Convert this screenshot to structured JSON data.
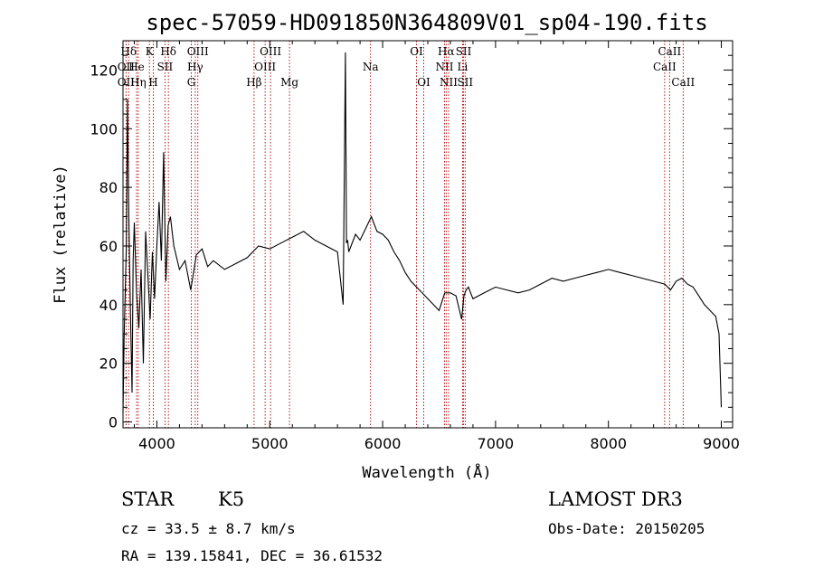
{
  "chart_data": {
    "type": "line",
    "title": "spec-57059-HD091850N364809V01_sp04-190.fits",
    "xlabel": "Wavelength (Å)",
    "ylabel": "Flux (relative)",
    "xlim": [
      3700,
      9100
    ],
    "ylim": [
      -2,
      130
    ],
    "xticks": [
      4000,
      5000,
      6000,
      7000,
      8000,
      9000
    ],
    "yticks": [
      0,
      20,
      40,
      60,
      80,
      100,
      120
    ],
    "xtick_labels": [
      "4000",
      "5000",
      "6000",
      "7000",
      "8000",
      "9000"
    ],
    "ytick_labels": [
      "0",
      "20",
      "40",
      "60",
      "80",
      "100",
      "120"
    ],
    "series": [
      {
        "name": "spectrum",
        "x": [
          3700,
          3710,
          3720,
          3730,
          3740,
          3750,
          3760,
          3770,
          3780,
          3790,
          3800,
          3820,
          3840,
          3860,
          3880,
          3900,
          3920,
          3940,
          3960,
          3980,
          4000,
          4020,
          4040,
          4060,
          4080,
          4100,
          4120,
          4150,
          4200,
          4250,
          4300,
          4350,
          4400,
          4450,
          4500,
          4600,
          4700,
          4800,
          4900,
          5000,
          5100,
          5200,
          5300,
          5400,
          5500,
          5600,
          5650,
          5670,
          5680,
          5690,
          5700,
          5720,
          5760,
          5800,
          5850,
          5900,
          5950,
          6000,
          6050,
          6100,
          6150,
          6200,
          6250,
          6300,
          6350,
          6400,
          6450,
          6500,
          6550,
          6600,
          6650,
          6700,
          6720,
          6740,
          6760,
          6800,
          6900,
          7000,
          7100,
          7200,
          7300,
          7400,
          7500,
          7600,
          7700,
          7800,
          7900,
          8000,
          8100,
          8200,
          8300,
          8400,
          8500,
          8550,
          8600,
          8650,
          8700,
          8750,
          8800,
          8850,
          8900,
          8950,
          8980,
          9000
        ],
        "y": [
          3,
          28,
          45,
          60,
          110,
          75,
          50,
          30,
          10,
          55,
          68,
          44,
          32,
          52,
          20,
          65,
          50,
          35,
          58,
          42,
          60,
          75,
          55,
          92,
          48,
          67,
          70,
          60,
          52,
          55,
          45,
          57,
          59,
          53,
          55,
          52,
          54,
          56,
          60,
          59,
          61,
          63,
          65,
          62,
          60,
          58,
          40,
          126,
          61,
          62,
          58,
          60,
          64,
          62,
          66,
          70,
          65,
          64,
          62,
          58,
          55,
          51,
          48,
          46,
          44,
          42,
          40,
          38,
          44,
          44,
          43,
          35,
          43,
          45,
          46,
          42,
          44,
          46,
          45,
          44,
          45,
          47,
          49,
          48,
          49,
          50,
          51,
          52,
          51,
          50,
          49,
          48,
          47,
          45,
          48,
          49,
          47,
          46,
          43,
          40,
          38,
          36,
          30,
          5
        ]
      }
    ],
    "line_markers": [
      {
        "label": "Hδ",
        "wl": 3750,
        "row": 0
      },
      {
        "label": "K",
        "wl": 3934,
        "row": 0
      },
      {
        "label": "Hδ",
        "wl": 4102,
        "row": 0
      },
      {
        "label": "OIII",
        "wl": 4363,
        "row": 0
      },
      {
        "label": "OIII",
        "wl": 5007,
        "row": 0
      },
      {
        "label": "OI",
        "wl": 6300,
        "row": 0
      },
      {
        "label": "Hα",
        "wl": 6563,
        "row": 0
      },
      {
        "label": "SII",
        "wl": 6717,
        "row": 0
      },
      {
        "label": "CaII",
        "wl": 8542,
        "row": 0
      },
      {
        "label": "OII",
        "wl": 3727,
        "row": 1
      },
      {
        "label": "He",
        "wl": 3820,
        "row": 1
      },
      {
        "label": "SII",
        "wl": 4072,
        "row": 1
      },
      {
        "label": "Hγ",
        "wl": 4340,
        "row": 1
      },
      {
        "label": "OIII",
        "wl": 4959,
        "row": 1
      },
      {
        "label": "Na",
        "wl": 5893,
        "row": 1
      },
      {
        "label": "NII",
        "wl": 6548,
        "row": 1
      },
      {
        "label": "Li",
        "wl": 6708,
        "row": 1
      },
      {
        "label": "CaII",
        "wl": 8498,
        "row": 1
      },
      {
        "label": "OII",
        "wl": 3727,
        "row": 2
      },
      {
        "label": "Hη",
        "wl": 3835,
        "row": 2
      },
      {
        "label": "H",
        "wl": 3968,
        "row": 2
      },
      {
        "label": "G",
        "wl": 4305,
        "row": 2
      },
      {
        "label": "Hβ",
        "wl": 4861,
        "row": 2
      },
      {
        "label": "Mg",
        "wl": 5175,
        "row": 2
      },
      {
        "label": "OI",
        "wl": 6364,
        "row": 2
      },
      {
        "label": "NII",
        "wl": 6584,
        "row": 2
      },
      {
        "label": "SII",
        "wl": 6731,
        "row": 2
      },
      {
        "label": "CaII",
        "wl": 8662,
        "row": 2
      }
    ],
    "marker_color": "#b00000"
  },
  "info": {
    "object_class": "STAR",
    "subclass": "K5",
    "survey": "LAMOST DR3",
    "redshift": "cz = 33.5 ± 8.7 km/s",
    "obs_date": "Obs-Date: 20150205",
    "coords": "RA = 139.15841, DEC =  36.61532"
  }
}
